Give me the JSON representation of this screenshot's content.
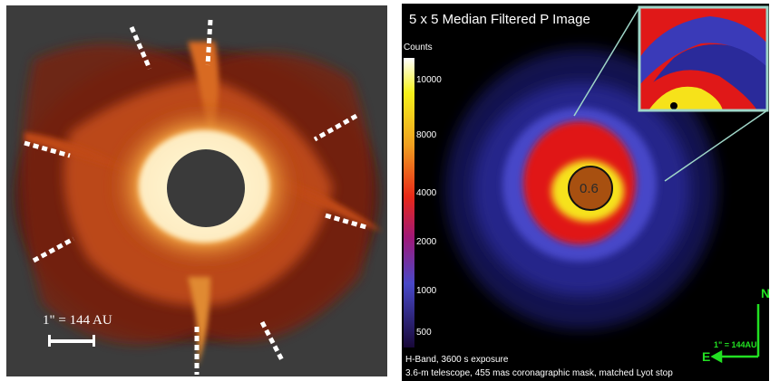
{
  "left": {
    "scale_label": "1\" = 144 AU"
  },
  "right": {
    "title": "5 x 5 Median Filtered P Image",
    "colorbar": {
      "title": "Counts",
      "ticks": [
        "10000",
        "8000",
        "6000",
        "4000",
        "2000",
        "1000",
        "500"
      ]
    },
    "mask_label": "0.6",
    "caption_line1": "H-Band, 3600 s exposure",
    "caption_line2": "3.6-m telescope, 455 mas coronagraphic mask, matched Lyot stop",
    "compass": {
      "north": "N",
      "east": "E",
      "scale": "1\" = 144AU"
    }
  },
  "colors": {
    "disk_dark": "#5a1408",
    "disk_mid": "#c8501a",
    "disk_bright": "#ffd27a",
    "polar_blue": "#3a3ab0",
    "polar_red": "#e01818",
    "polar_yellow": "#f6e21a",
    "inset_border": "#9fd6c8",
    "compass_green": "#22e022"
  }
}
